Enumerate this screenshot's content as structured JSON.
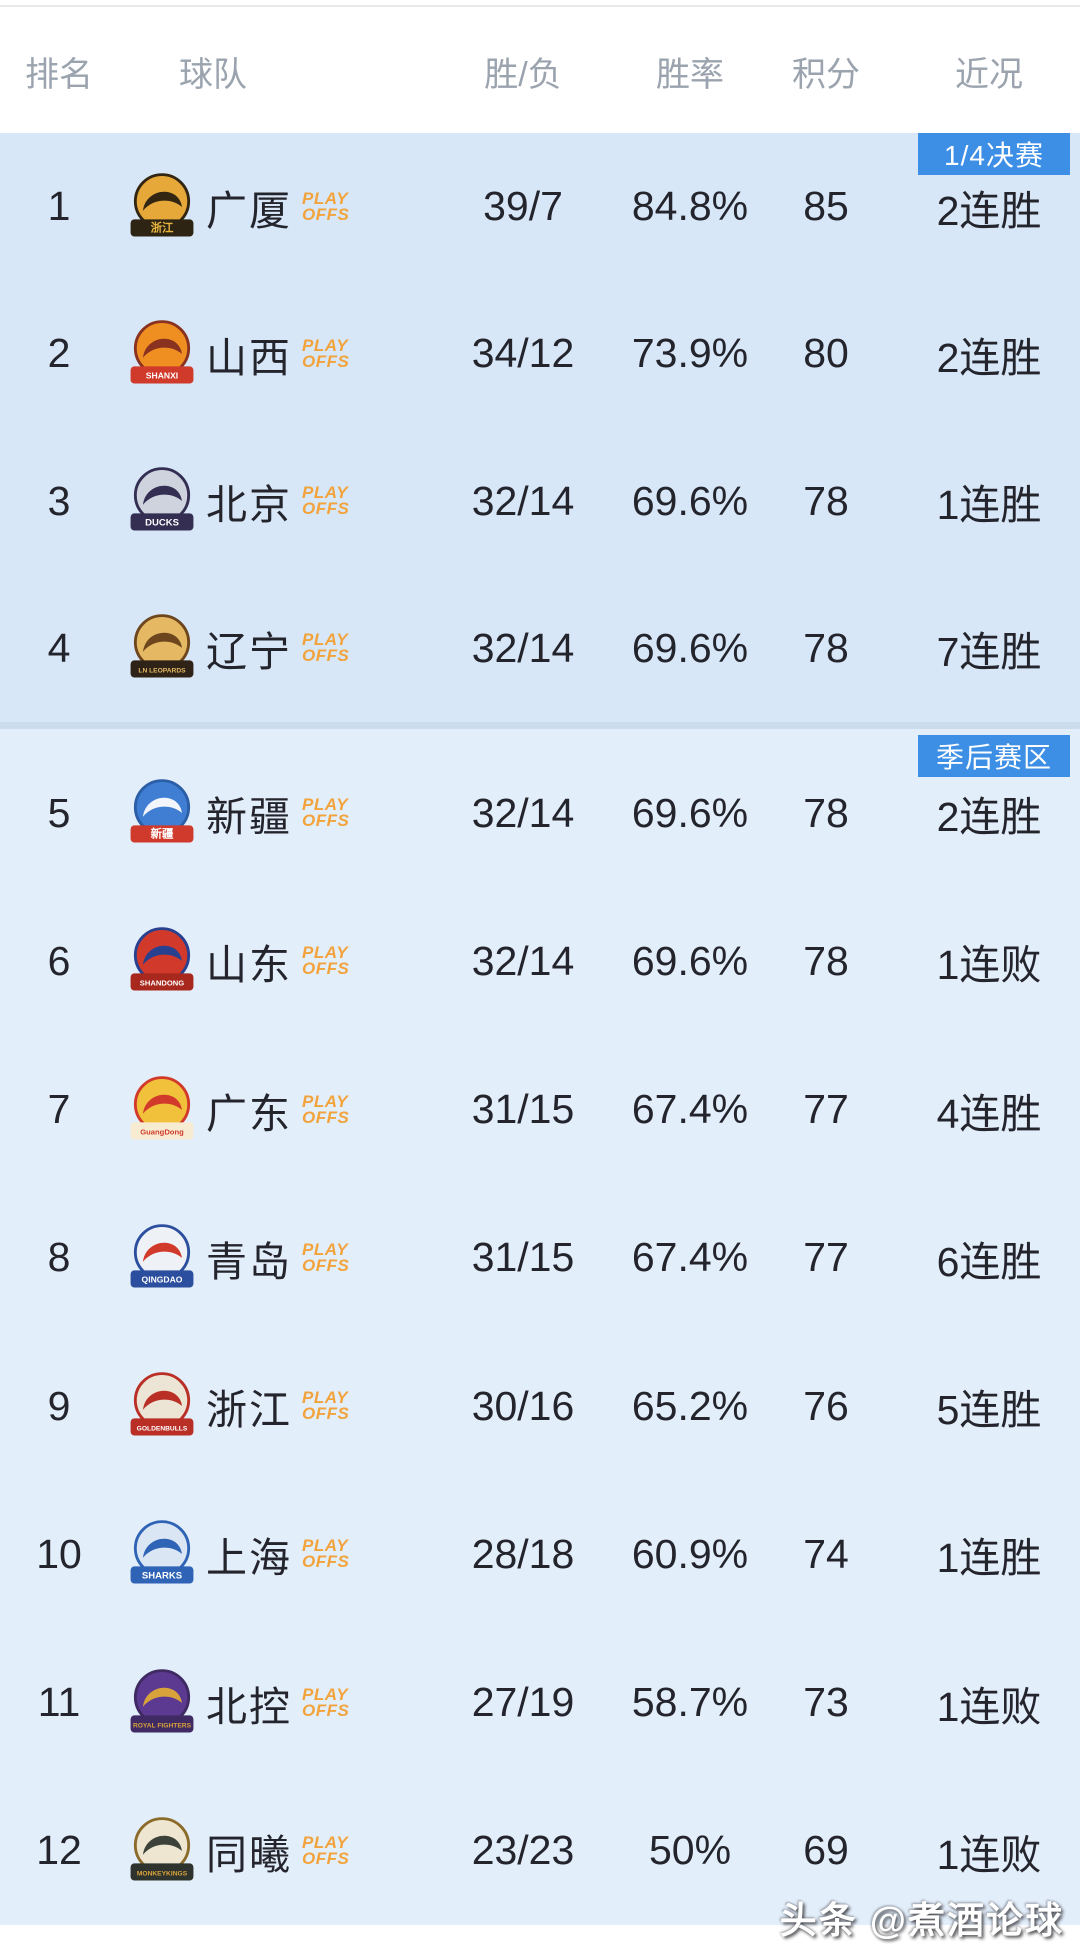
{
  "header": {
    "columns": [
      "排名",
      "球队",
      "胜/负",
      "胜率",
      "积分",
      "近况"
    ]
  },
  "playoff_tag": [
    "PLAY",
    "OFFS"
  ],
  "watermark": "头条 @煮酒论球",
  "colors": {
    "badge_blue": "#3d8ee5",
    "tag_orange": "#f2a33c",
    "section_top_bg": "#d7e7f8",
    "section_bottom_bg": "#e3eefb",
    "header_text": "#9aa3ae",
    "row_text": "#24242c"
  },
  "sections": [
    {
      "badge": "1/4决赛",
      "teams": [
        {
          "rank": "1",
          "name": "广厦",
          "wl": "39/7",
          "pct": "84.8%",
          "pts": "85",
          "streak": "2连胜",
          "logo": {
            "icon": "zhejiang-guangsha-lions-logo",
            "circle": "#e7a83a",
            "ring": "#322612",
            "mascot": "#322612",
            "band": "#2e2414",
            "band_text_color": "#e8b53f",
            "label": "浙江",
            "label_size": 12
          }
        },
        {
          "rank": "2",
          "name": "山西",
          "wl": "34/12",
          "pct": "73.9%",
          "pts": "80",
          "streak": "2连胜",
          "logo": {
            "icon": "shanxi-loongs-logo",
            "circle": "#ef8e21",
            "ring": "#8a3220",
            "mascot": "#8a3220",
            "band": "#cf3a2b",
            "band_text_color": "#ffffff",
            "label": "SHANXI",
            "label_size": 9
          }
        },
        {
          "rank": "3",
          "name": "北京",
          "wl": "32/14",
          "pct": "69.6%",
          "pts": "78",
          "streak": "1连胜",
          "logo": {
            "icon": "beijing-ducks-logo",
            "circle": "#cfd3de",
            "ring": "#332e52",
            "mascot": "#332e52",
            "band": "#332e52",
            "band_text_color": "#ffffff",
            "label": "DUCKS",
            "label_size": 10
          }
        },
        {
          "rank": "4",
          "name": "辽宁",
          "wl": "32/14",
          "pct": "69.6%",
          "pts": "78",
          "streak": "7连胜",
          "logo": {
            "icon": "liaoning-leopards-logo",
            "circle": "#e5b964",
            "ring": "#6e461d",
            "mascot": "#6e461d",
            "band": "#2f2317",
            "band_text_color": "#e5b964",
            "label": "LN LEOPARDS",
            "label_size": 7
          }
        }
      ]
    },
    {
      "badge": "季后赛区",
      "teams": [
        {
          "rank": "5",
          "name": "新疆",
          "wl": "32/14",
          "pct": "69.6%",
          "pts": "78",
          "streak": "2连胜",
          "logo": {
            "icon": "xinjiang-flying-tigers-logo",
            "circle": "#3f7ed2",
            "ring": "#2c5ea8",
            "mascot": "#f2f5fb",
            "band": "#d03a2c",
            "band_text_color": "#ffffff",
            "label": "新疆",
            "label_size": 12
          }
        },
        {
          "rank": "6",
          "name": "山东",
          "wl": "32/14",
          "pct": "69.6%",
          "pts": "78",
          "streak": "1连败",
          "logo": {
            "icon": "shandong-logo",
            "circle": "#d13a2a",
            "ring": "#27408f",
            "mascot": "#27408f",
            "band": "#a8281d",
            "band_text_color": "#ffffff",
            "label": "SHANDONG",
            "label_size": 8
          }
        },
        {
          "rank": "7",
          "name": "广东",
          "wl": "31/15",
          "pct": "67.4%",
          "pts": "77",
          "streak": "4连胜",
          "logo": {
            "icon": "guangdong-tigers-logo",
            "circle": "#f2c13b",
            "ring": "#d13a2a",
            "mascot": "#d13a2a",
            "band": "#f7ecd2",
            "band_text_color": "#d13a2a",
            "label": "GuangDong",
            "label_size": 8
          }
        },
        {
          "rank": "8",
          "name": "青岛",
          "wl": "31/15",
          "pct": "67.4%",
          "pts": "77",
          "streak": "6连胜",
          "logo": {
            "icon": "qingdao-eagles-logo",
            "circle": "#eef1f6",
            "ring": "#2b4f9e",
            "mascot": "#d13a2a",
            "band": "#2b4f9e",
            "band_text_color": "#ffffff",
            "label": "QINGDAO",
            "label_size": 9
          }
        },
        {
          "rank": "9",
          "name": "浙江",
          "wl": "30/16",
          "pct": "65.2%",
          "pts": "76",
          "streak": "5连胜",
          "logo": {
            "icon": "zhejiang-golden-bulls-logo",
            "circle": "#ece4d4",
            "ring": "#b92f26",
            "mascot": "#b92f26",
            "band": "#b92f26",
            "band_text_color": "#ffffff",
            "label": "GOLDENBULLS",
            "label_size": 7
          }
        },
        {
          "rank": "10",
          "name": "上海",
          "wl": "28/18",
          "pct": "60.9%",
          "pts": "74",
          "streak": "1连胜",
          "logo": {
            "icon": "shanghai-sharks-logo",
            "circle": "#dbe6f5",
            "ring": "#2f63b5",
            "mascot": "#2f63b5",
            "band": "#2f63b5",
            "band_text_color": "#ffffff",
            "label": "SHARKS",
            "label_size": 10
          }
        },
        {
          "rank": "11",
          "name": "北控",
          "wl": "27/19",
          "pct": "58.7%",
          "pts": "73",
          "streak": "1连败",
          "logo": {
            "icon": "beijing-royal-fighters-logo",
            "circle": "#5d3a91",
            "ring": "#3f2a63",
            "mascot": "#d9a33c",
            "band": "#3f2a63",
            "band_text_color": "#d9a33c",
            "label": "ROYAL FIGHTERS",
            "label_size": 7
          }
        },
        {
          "rank": "12",
          "name": "同曦",
          "wl": "23/23",
          "pct": "50%",
          "pts": "69",
          "streak": "1连败",
          "logo": {
            "icon": "nanjing-monkey-kings-logo",
            "circle": "#efe6d2",
            "ring": "#8a6b2a",
            "mascot": "#3c423a",
            "band": "#2f332e",
            "band_text_color": "#d9a33c",
            "label": "MONKEYKINGS",
            "label_size": 7
          }
        }
      ]
    }
  ]
}
